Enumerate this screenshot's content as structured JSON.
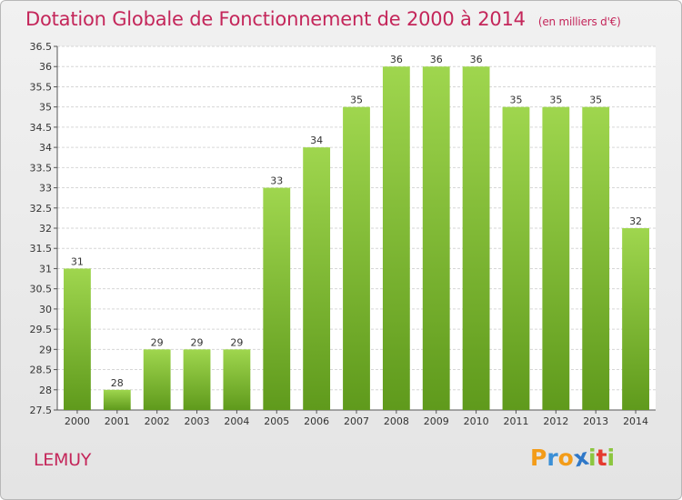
{
  "chart_data": {
    "type": "bar",
    "title": "Dotation Globale de Fonctionnement de 2000 à 2014",
    "unit": "(en milliers d'€)",
    "xlabel": "",
    "ylabel": "",
    "categories": [
      "2000",
      "2001",
      "2002",
      "2003",
      "2004",
      "2005",
      "2006",
      "2007",
      "2008",
      "2009",
      "2010",
      "2011",
      "2012",
      "2013",
      "2014"
    ],
    "values": [
      31,
      28,
      29,
      29,
      29,
      33,
      34,
      35,
      36,
      36,
      36,
      35,
      35,
      35,
      32
    ],
    "data_labels": [
      "31",
      "28",
      "29",
      "29",
      "29",
      "33",
      "34",
      "35",
      "36",
      "36",
      "36",
      "35",
      "35",
      "35",
      "32"
    ],
    "ylim": [
      27.5,
      36.5
    ],
    "yticks": [
      "27.5",
      "28",
      "28.5",
      "29",
      "29.5",
      "30",
      "30.5",
      "31",
      "31.5",
      "32",
      "32.5",
      "33",
      "33.5",
      "34",
      "34.5",
      "35",
      "35.5",
      "36",
      "36.5"
    ],
    "grid": true,
    "bar_color_light": "#9fd64e",
    "bar_color_dark": "#5f9a1c"
  },
  "footer": {
    "commune": "LEMUY",
    "logo_letters": [
      "P",
      "r",
      "o",
      "x",
      "i",
      "t",
      "i"
    ],
    "logo_colors": [
      "#f39c19",
      "#3b8fd6",
      "#f39c19",
      "#2f78c8",
      "#8cc63f",
      "#e53a2f",
      "#8cc63f"
    ]
  }
}
